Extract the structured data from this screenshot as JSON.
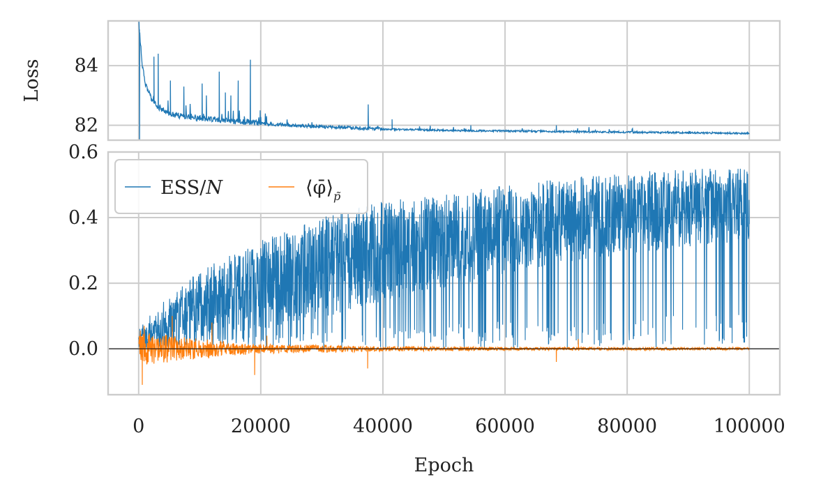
{
  "chart_data": [
    {
      "panel": "top",
      "type": "line",
      "title": "",
      "xlabel": "",
      "ylabel": "Loss",
      "xlim": [
        -5000,
        105000
      ],
      "ylim": [
        81.5,
        85.5
      ],
      "grid": true,
      "x_ticks": [
        0,
        20000,
        40000,
        60000,
        80000,
        100000
      ],
      "y_ticks": [
        82,
        84
      ],
      "y_tick_labels": [
        "82",
        "84"
      ],
      "series": [
        {
          "name": "Loss",
          "color": "#1f77b4",
          "trend": {
            "x": [
              0,
              500,
              1000,
              2000,
              3000,
              5000,
              8000,
              12000,
              16000,
              20000,
              25000,
              30000,
              35000,
              40000,
              45000,
              50000,
              60000,
              70000,
              80000,
              90000,
              100000
            ],
            "y": [
              85.5,
              84.2,
              83.4,
              82.9,
              82.6,
              82.35,
              82.25,
              82.18,
              82.1,
              82.05,
              81.98,
              81.93,
              81.9,
              81.86,
              81.84,
              81.82,
              81.8,
              81.78,
              81.76,
              81.74,
              81.72
            ]
          },
          "noise_amplitude": 0.1,
          "spikes": [
            [
              150,
              81.4
            ],
            [
              2500,
              84.3
            ],
            [
              3200,
              84.4
            ],
            [
              5200,
              83.5
            ],
            [
              7400,
              83.3
            ],
            [
              10400,
              83.4
            ],
            [
              11100,
              83.0
            ],
            [
              13200,
              83.8
            ],
            [
              14200,
              83.1
            ],
            [
              15100,
              83.0
            ],
            [
              16300,
              83.5
            ],
            [
              18300,
              84.2
            ],
            [
              19900,
              82.5
            ],
            [
              37600,
              82.7
            ],
            [
              41500,
              82.2
            ],
            [
              54400,
              82.0
            ],
            [
              68400,
              82.0
            ],
            [
              71900,
              81.9
            ]
          ]
        }
      ]
    },
    {
      "panel": "bottom",
      "type": "line",
      "title": "",
      "xlabel": "Epoch",
      "ylabel": "",
      "xlim": [
        -5000,
        105000
      ],
      "ylim": [
        -0.14,
        0.6
      ],
      "grid": true,
      "x_ticks": [
        0,
        20000,
        40000,
        60000,
        80000,
        100000
      ],
      "x_tick_labels": [
        "0",
        "20000",
        "40000",
        "60000",
        "80000",
        "100000"
      ],
      "y_ticks": [
        0.0,
        0.2,
        0.4,
        0.6
      ],
      "y_tick_labels": [
        "0.0",
        "0.2",
        "0.4",
        "0.6"
      ],
      "zero_line": 0.0,
      "legend_placement": "top-left",
      "legend_ncol": 2,
      "series": [
        {
          "name": "ESS/N",
          "legend_label": "ESS/",
          "legend_label_italic": "N",
          "color": "#1f77b4",
          "upper_envelope": {
            "x": [
              0,
              5000,
              10000,
              20000,
              30000,
              40000,
              50000,
              60000,
              70000,
              80000,
              90000,
              100000
            ],
            "y": [
              0.07,
              0.16,
              0.24,
              0.33,
              0.4,
              0.45,
              0.47,
              0.5,
              0.52,
              0.54,
              0.55,
              0.55
            ]
          },
          "mean": {
            "x": [
              0,
              5000,
              10000,
              20000,
              30000,
              40000,
              50000,
              60000,
              70000,
              80000,
              90000,
              100000
            ],
            "y": [
              0.02,
              0.07,
              0.12,
              0.17,
              0.22,
              0.27,
              0.3,
              0.34,
              0.37,
              0.39,
              0.41,
              0.42
            ]
          },
          "lower_envelope": {
            "x": [
              0,
              20000,
              40000,
              60000,
              80000,
              100000
            ],
            "y": [
              0.0,
              0.0,
              0.0,
              0.0,
              0.0,
              0.02
            ]
          }
        },
        {
          "name": "<phi_bar>_p_tilde",
          "legend_label": "⟨φ̄⟩",
          "legend_label_sub": "p̃",
          "color": "#ff7f0e",
          "mean": {
            "x": [
              0,
              100000
            ],
            "y": [
              0.0,
              0.0
            ]
          },
          "amplitude": {
            "x": [
              0,
              2000,
              10000,
              20000,
              40000,
              60000,
              100000
            ],
            "y": [
              0.06,
              0.05,
              0.03,
              0.015,
              0.008,
              0.005,
              0.004
            ]
          },
          "spikes": [
            [
              600,
              -0.11
            ],
            [
              900,
              0.07
            ],
            [
              5500,
              0.1
            ],
            [
              12000,
              0.08
            ],
            [
              19000,
              -0.08
            ],
            [
              21000,
              0.04
            ],
            [
              37500,
              -0.06
            ],
            [
              68400,
              -0.04
            ],
            [
              72000,
              0.03
            ]
          ]
        }
      ]
    }
  ],
  "colors": {
    "grid": "#cccccc",
    "spine": "#cccccc",
    "zero_line": "#000000",
    "text": "#222222",
    "background": "#ffffff"
  }
}
